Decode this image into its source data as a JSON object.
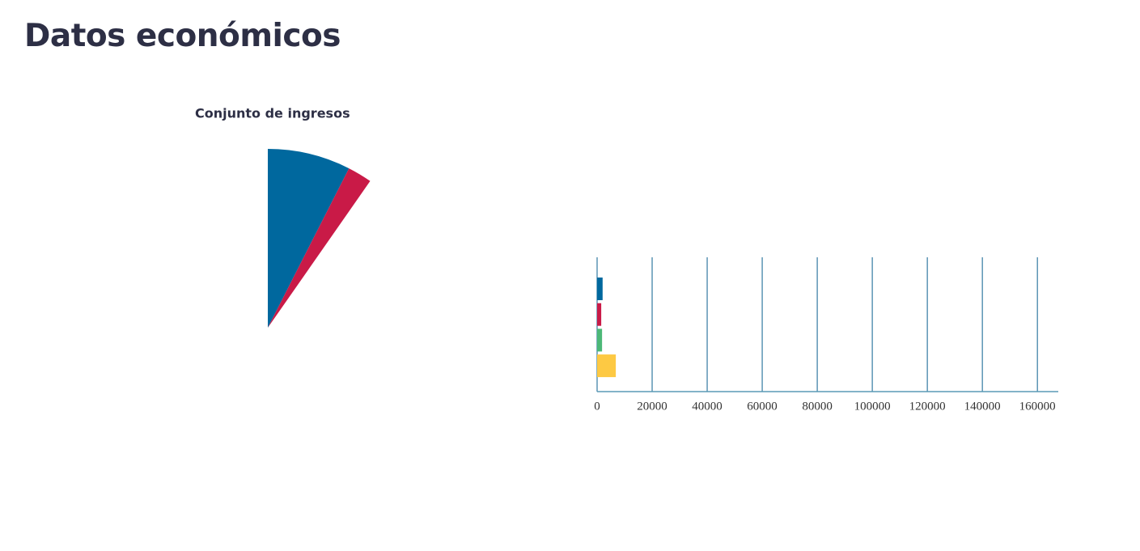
{
  "header": {
    "title": "Datos económicos"
  },
  "chart_data": [
    {
      "type": "pie",
      "title": "Conjunto de ingresos",
      "values": [
        7.5,
        2.2
      ],
      "colors": [
        "#00689e",
        "#c91a47"
      ]
    },
    {
      "type": "bar",
      "orientation": "horizontal",
      "categories": [
        null,
        null,
        null,
        null
      ],
      "values": [
        2000,
        1500,
        1800,
        6800
      ],
      "colors": [
        "#00689e",
        "#c91a47",
        "#4cb877",
        "#fdc943"
      ],
      "xlim": [
        0,
        167600
      ],
      "xticks": [
        0,
        20000,
        40000,
        60000,
        80000,
        100000,
        120000,
        140000,
        160000
      ],
      "grid": true
    }
  ]
}
